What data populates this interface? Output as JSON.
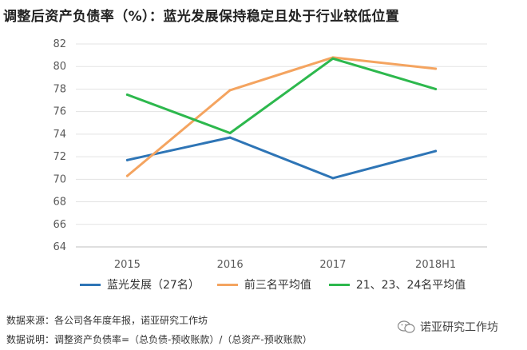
{
  "header": {
    "title": "调整后资产负债率（%）：蓝光发展保持稳定且处于行业较低位置"
  },
  "chart_data": {
    "type": "line",
    "title": "调整后资产负债率（%）：蓝光发展保持稳定且处于行业较低位置",
    "x": [
      "2015",
      "2016",
      "2017",
      "2018H1"
    ],
    "ylim": [
      64,
      82
    ],
    "yticks": [
      64,
      66,
      68,
      70,
      72,
      74,
      76,
      78,
      80,
      82
    ],
    "grid": true,
    "legend_position": "bottom",
    "series": [
      {
        "name": "蓝光发展（27名）",
        "color": "#2E75B6",
        "values": [
          71.7,
          73.7,
          70.1,
          72.5
        ]
      },
      {
        "name": "前三名平均值",
        "color": "#F4A460",
        "values": [
          70.3,
          77.9,
          80.8,
          79.8
        ]
      },
      {
        "name": "21、23、24名平均值",
        "color": "#2DB84D",
        "values": [
          77.5,
          74.1,
          80.7,
          78.0
        ]
      }
    ]
  },
  "footer": {
    "source": "数据来源：各公司各年度年报，诺亚研究工作坊",
    "note": "数据说明：调整资产负债率=（总负债-预收账款）/（总资产-预收账款）",
    "brand": "诺亚研究工作坊"
  }
}
